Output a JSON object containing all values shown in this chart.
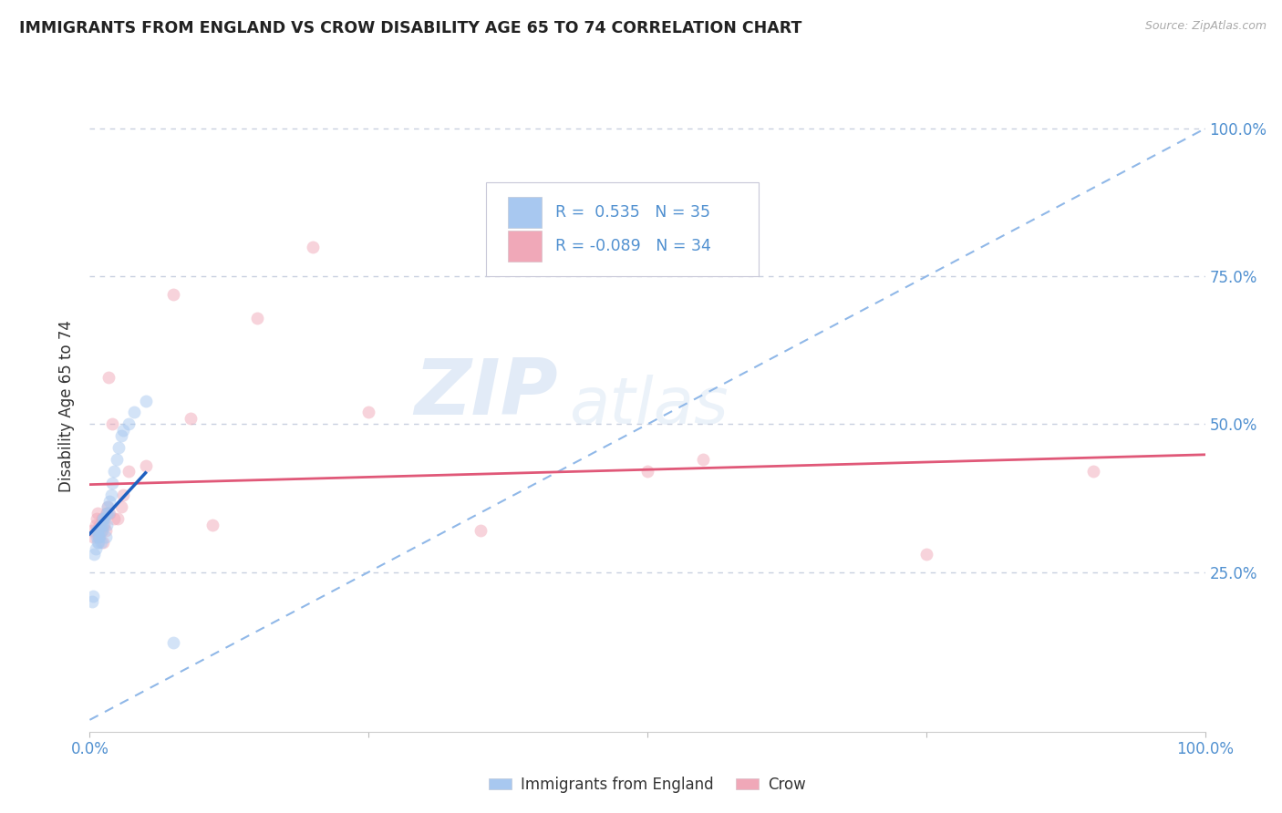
{
  "title": "IMMIGRANTS FROM ENGLAND VS CROW DISABILITY AGE 65 TO 74 CORRELATION CHART",
  "source": "Source: ZipAtlas.com",
  "ylabel": "Disability Age 65 to 74",
  "xlim": [
    0.0,
    1.0
  ],
  "ylim": [
    -0.02,
    1.08
  ],
  "yticks": [
    0.25,
    0.5,
    0.75,
    1.0
  ],
  "ytick_labels": [
    "25.0%",
    "50.0%",
    "75.0%",
    "100.0%"
  ],
  "xticks": [
    0.0,
    0.25,
    0.5,
    0.75,
    1.0
  ],
  "xtick_labels": [
    "0.0%",
    "",
    "",
    "",
    "100.0%"
  ],
  "r_england": 0.535,
  "n_england": 35,
  "r_crow": -0.089,
  "n_crow": 34,
  "blue_color": "#a8c8f0",
  "pink_color": "#f0a8b8",
  "blue_line_color": "#2060c0",
  "pink_line_color": "#e05878",
  "diag_line_color": "#90b8e8",
  "watermark_zip": "ZIP",
  "watermark_atlas": "atlas",
  "blue_scatter_x": [
    0.002,
    0.003,
    0.004,
    0.005,
    0.006,
    0.006,
    0.007,
    0.007,
    0.008,
    0.008,
    0.009,
    0.009,
    0.01,
    0.01,
    0.011,
    0.012,
    0.012,
    0.013,
    0.014,
    0.015,
    0.015,
    0.016,
    0.017,
    0.018,
    0.019,
    0.02,
    0.022,
    0.024,
    0.026,
    0.028,
    0.03,
    0.035,
    0.04,
    0.05,
    0.075
  ],
  "blue_scatter_y": [
    0.2,
    0.21,
    0.28,
    0.29,
    0.31,
    0.32,
    0.3,
    0.32,
    0.3,
    0.31,
    0.31,
    0.32,
    0.3,
    0.33,
    0.32,
    0.33,
    0.34,
    0.34,
    0.31,
    0.33,
    0.35,
    0.36,
    0.35,
    0.37,
    0.38,
    0.4,
    0.42,
    0.44,
    0.46,
    0.48,
    0.49,
    0.5,
    0.52,
    0.54,
    0.13
  ],
  "pink_scatter_x": [
    0.002,
    0.003,
    0.005,
    0.006,
    0.007,
    0.008,
    0.009,
    0.01,
    0.011,
    0.012,
    0.013,
    0.014,
    0.015,
    0.016,
    0.017,
    0.018,
    0.02,
    0.022,
    0.025,
    0.028,
    0.03,
    0.035,
    0.05,
    0.075,
    0.09,
    0.11,
    0.15,
    0.2,
    0.25,
    0.35,
    0.5,
    0.55,
    0.75,
    0.9
  ],
  "pink_scatter_y": [
    0.32,
    0.31,
    0.33,
    0.34,
    0.35,
    0.31,
    0.33,
    0.32,
    0.34,
    0.3,
    0.33,
    0.32,
    0.35,
    0.36,
    0.58,
    0.35,
    0.5,
    0.34,
    0.34,
    0.36,
    0.38,
    0.42,
    0.43,
    0.72,
    0.51,
    0.33,
    0.68,
    0.8,
    0.52,
    0.32,
    0.42,
    0.44,
    0.28,
    0.42
  ],
  "background_color": "#ffffff",
  "grid_color": "#c8d0e0",
  "title_color": "#222222",
  "tick_color": "#5090d0",
  "legend_text_color": "#5090d0",
  "legend_r_color": "#222222",
  "marker_size": 100,
  "marker_alpha": 0.5
}
